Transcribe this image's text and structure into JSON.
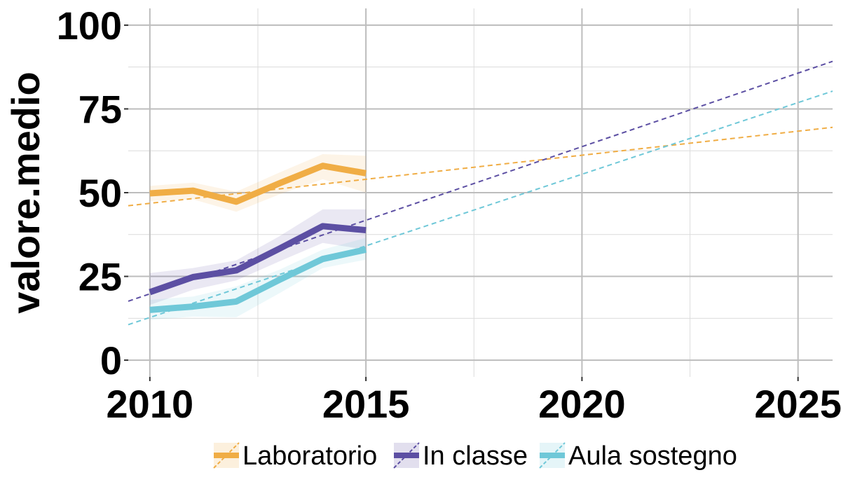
{
  "chart_data": {
    "type": "line",
    "ylabel": "valore.medio",
    "xlabel": "",
    "xlim": [
      2009.5,
      2025.8
    ],
    "ylim": [
      -5,
      105
    ],
    "x_ticks": [
      2010,
      2015,
      2020,
      2025
    ],
    "y_ticks": [
      0,
      25,
      50,
      75,
      100
    ],
    "grid": true,
    "legend_position": "bottom",
    "series": [
      {
        "name": "Laboratorio",
        "color": "#f0ad45",
        "x": [
          2010,
          2011,
          2012,
          2013,
          2014,
          2015
        ],
        "values": [
          49.8,
          50.6,
          47.3,
          52.8,
          58.0,
          55.8
        ],
        "ci_lower": [
          47.5,
          48.0,
          44.3,
          49.5,
          54.0,
          50.0
        ],
        "ci_upper": [
          52.0,
          53.0,
          50.3,
          56.0,
          61.5,
          61.0
        ],
        "trend": {
          "x": [
            2009.5,
            2025.8
          ],
          "y": [
            46.1,
            69.5
          ]
        }
      },
      {
        "name": "In classe",
        "color": "#5c4fa3",
        "x": [
          2010,
          2011,
          2012,
          2013,
          2014,
          2015
        ],
        "values": [
          20.3,
          24.8,
          26.8,
          33.3,
          40.0,
          38.8
        ],
        "ci_lower": [
          16.5,
          21.0,
          23.8,
          29.5,
          35.0,
          33.0
        ],
        "ci_upper": [
          26.0,
          27.5,
          29.8,
          37.0,
          45.0,
          45.0
        ],
        "trend": {
          "x": [
            2009.5,
            2025.8
          ],
          "y": [
            17.6,
            89.2
          ]
        }
      },
      {
        "name": "Aula sostegno",
        "color": "#6fc8d8",
        "x": [
          2010,
          2011,
          2012,
          2013,
          2014,
          2015
        ],
        "values": [
          15.0,
          16.0,
          17.5,
          24.0,
          30.2,
          33.0
        ],
        "ci_lower": [
          12.0,
          13.0,
          12.8,
          20.0,
          27.5,
          30.0
        ],
        "ci_upper": [
          18.0,
          19.0,
          22.0,
          27.0,
          33.0,
          36.5
        ],
        "trend": {
          "x": [
            2009.5,
            2025.8
          ],
          "y": [
            10.6,
            80.3
          ]
        }
      }
    ]
  }
}
